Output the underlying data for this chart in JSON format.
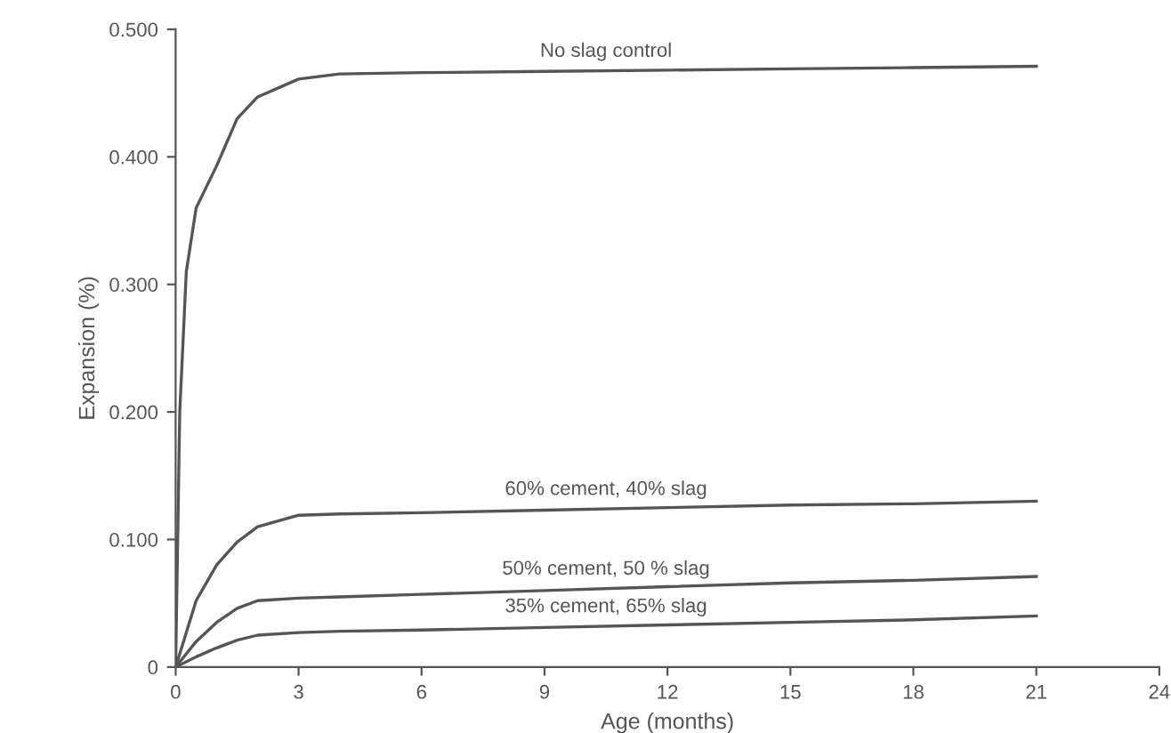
{
  "chart_data": {
    "type": "line",
    "xlabel": "Age (months)",
    "ylabel": "Expansion (%)",
    "xlim": [
      0,
      24
    ],
    "xticks": [
      0,
      3,
      6,
      9,
      12,
      15,
      18,
      21,
      24
    ],
    "ylim": [
      0,
      0.5
    ],
    "yticks": [
      {
        "value": 0,
        "label": "0"
      },
      {
        "value": 0.1,
        "label": "0.100"
      },
      {
        "value": 0.2,
        "label": "0.200"
      },
      {
        "value": 0.3,
        "label": "0.300"
      },
      {
        "value": 0.4,
        "label": "0.400"
      },
      {
        "value": 0.5,
        "label": "0.500"
      }
    ],
    "grid": false,
    "legend": false,
    "marker": "none",
    "line_style": "solid",
    "series": [
      {
        "name": "No slag control",
        "color": "#555555",
        "x": [
          0,
          0.1,
          0.26,
          0.5,
          1,
          1.5,
          2,
          3,
          4,
          6,
          9,
          12,
          15,
          18,
          21
        ],
        "values": [
          0,
          0.2,
          0.31,
          0.36,
          0.393,
          0.43,
          0.447,
          0.461,
          0.465,
          0.466,
          0.467,
          0.468,
          0.469,
          0.47,
          0.471
        ]
      },
      {
        "name": "60% cement, 40% slag",
        "color": "#555555",
        "x": [
          0,
          0.5,
          1,
          1.5,
          2,
          3,
          4,
          6,
          9,
          12,
          15,
          18,
          21
        ],
        "values": [
          0,
          0.052,
          0.08,
          0.098,
          0.11,
          0.119,
          0.12,
          0.121,
          0.123,
          0.125,
          0.127,
          0.128,
          0.13
        ]
      },
      {
        "name": "50% cement, 50 % slag",
        "color": "#555555",
        "x": [
          0,
          0.5,
          1,
          1.5,
          2,
          3,
          4,
          6,
          9,
          12,
          15,
          18,
          21
        ],
        "values": [
          0,
          0.02,
          0.035,
          0.046,
          0.052,
          0.054,
          0.055,
          0.057,
          0.06,
          0.063,
          0.066,
          0.068,
          0.071
        ]
      },
      {
        "name": "35% cement, 65% slag",
        "color": "#555555",
        "x": [
          0,
          0.5,
          1,
          1.5,
          2,
          3,
          4,
          6,
          9,
          12,
          15,
          18,
          21
        ],
        "values": [
          0,
          0.008,
          0.015,
          0.021,
          0.025,
          0.027,
          0.028,
          0.029,
          0.031,
          0.033,
          0.035,
          0.037,
          0.04
        ]
      }
    ]
  }
}
